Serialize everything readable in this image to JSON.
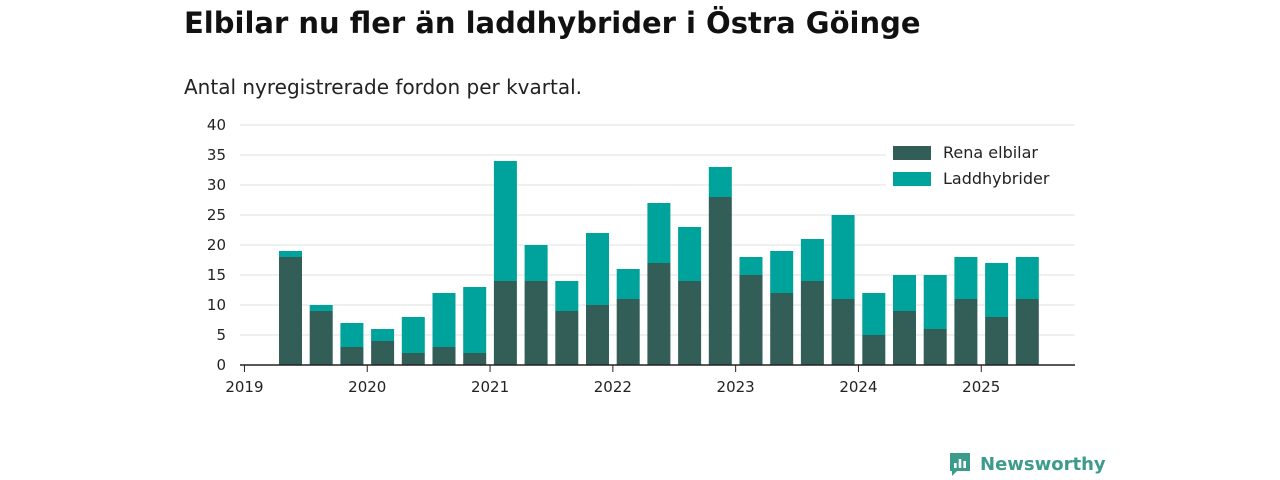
{
  "page": {
    "title": "Elbilar nu fler än laddhybrider i Östra Göinge",
    "subtitle": "Antal nyregistrerade fordon per kvartal."
  },
  "brand": {
    "name": "Newsworthy",
    "icon": "newsworthy-logo-icon",
    "color": "#3d9b8c"
  },
  "chart_data": {
    "type": "bar",
    "stacked": true,
    "title": "Elbilar nu fler än laddhybrider i Östra Göinge",
    "subtitle": "Antal nyregistrerade fordon per kvartal.",
    "xlabel": "",
    "ylabel": "",
    "ylim": [
      0,
      40
    ],
    "yticks": [
      0,
      5,
      10,
      15,
      20,
      25,
      30,
      35,
      40
    ],
    "grid": true,
    "legend_position": "top-right",
    "categories": [
      "2019 Q2",
      "2019 Q3",
      "2019 Q4",
      "2020 Q1",
      "2020 Q2",
      "2020 Q3",
      "2020 Q4",
      "2021 Q1",
      "2021 Q2",
      "2021 Q3",
      "2021 Q4",
      "2022 Q1",
      "2022 Q2",
      "2022 Q3",
      "2022 Q4",
      "2023 Q1",
      "2023 Q2",
      "2023 Q3",
      "2023 Q4",
      "2024 Q1",
      "2024 Q2",
      "2024 Q3",
      "2024 Q4",
      "2025 Q1",
      "2025 Q2"
    ],
    "year_ticks": [
      "2019",
      "2020",
      "2021",
      "2022",
      "2023",
      "2024",
      "2025"
    ],
    "series": [
      {
        "name": "Rena elbilar",
        "color": "#335e58",
        "values": [
          18,
          9,
          3,
          4,
          2,
          3,
          2,
          14,
          14,
          9,
          10,
          11,
          17,
          14,
          28,
          15,
          12,
          14,
          11,
          5,
          9,
          6,
          11,
          8,
          11
        ]
      },
      {
        "name": "Laddhybrider",
        "color": "#00a39b",
        "values": [
          1,
          1,
          4,
          2,
          6,
          9,
          11,
          20,
          6,
          5,
          12,
          5,
          10,
          9,
          5,
          3,
          7,
          7,
          14,
          7,
          6,
          9,
          7,
          9,
          7
        ]
      }
    ]
  }
}
